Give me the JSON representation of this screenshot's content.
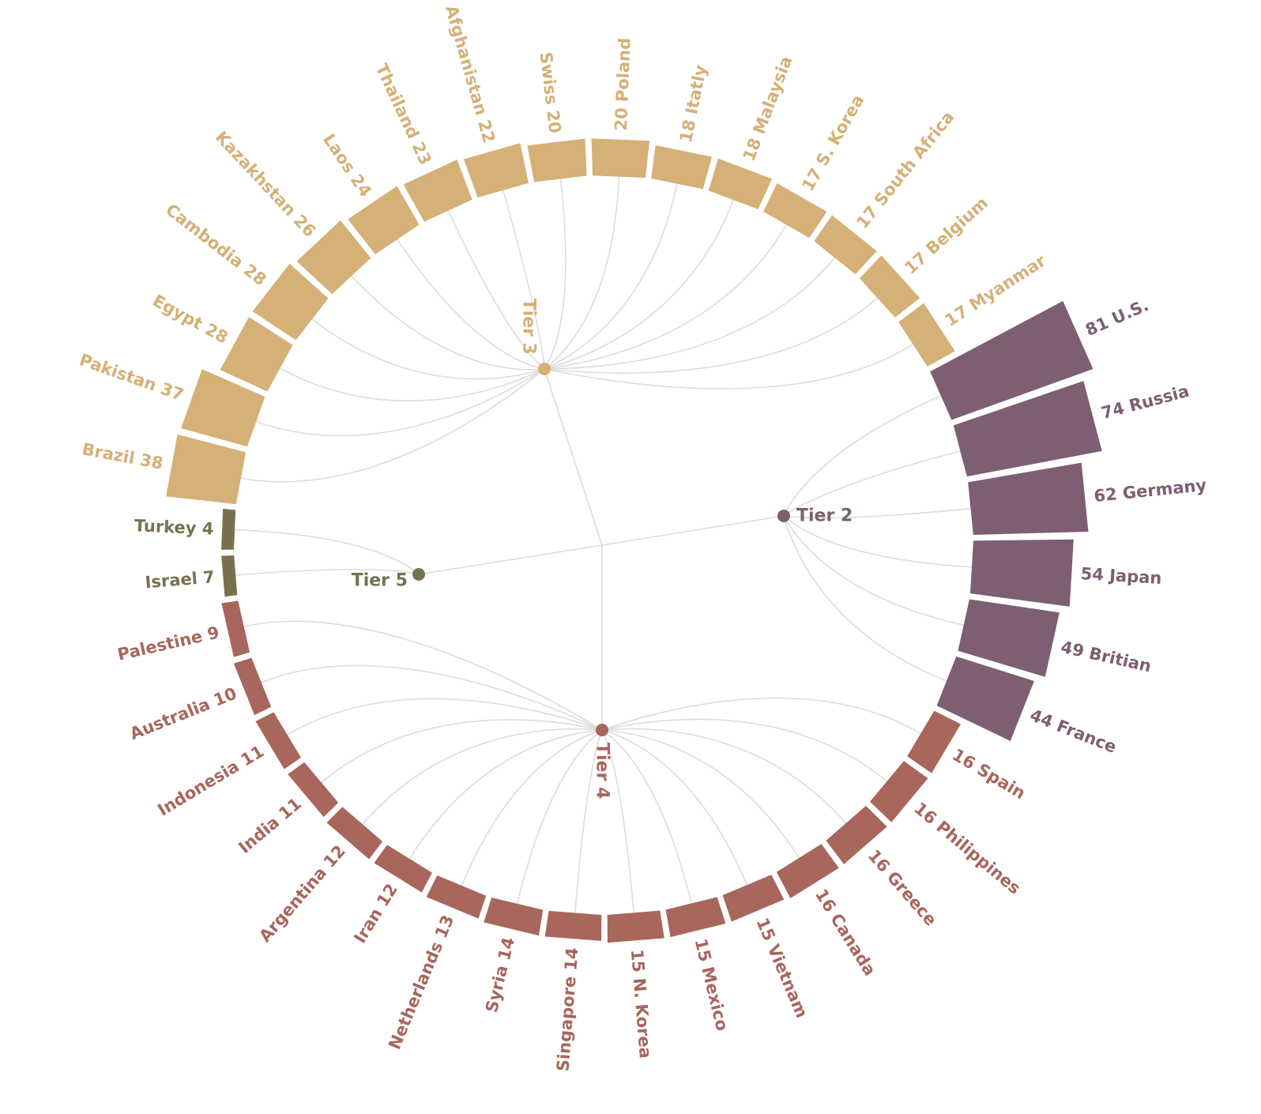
{
  "chart_data": {
    "type": "radial-bar",
    "title": "",
    "colors": {
      "Tier 2": "#7d5e72",
      "Tier 3": "#d5b077",
      "Tier 4": "#a8665c",
      "Tier 5": "#787150",
      "link": "#dcdcdc"
    },
    "tiers": [
      {
        "name": "Tier 2",
        "label": "Tier 2"
      },
      {
        "name": "Tier 3",
        "label": "Tier 3"
      },
      {
        "name": "Tier 4",
        "label": "Tier 4"
      },
      {
        "name": "Tier 5",
        "label": "Tier 5"
      }
    ],
    "items": [
      {
        "name": "U.S.",
        "value": 81,
        "tier": "Tier 2"
      },
      {
        "name": "Russia",
        "value": 74,
        "tier": "Tier 2"
      },
      {
        "name": "Germany",
        "value": 62,
        "tier": "Tier 2"
      },
      {
        "name": "Japan",
        "value": 54,
        "tier": "Tier 2"
      },
      {
        "name": "Britian",
        "value": 49,
        "tier": "Tier 2"
      },
      {
        "name": "France",
        "value": 44,
        "tier": "Tier 2"
      },
      {
        "name": "Spain",
        "value": 16,
        "tier": "Tier 4"
      },
      {
        "name": "Philippines",
        "value": 16,
        "tier": "Tier 4"
      },
      {
        "name": "Greece",
        "value": 16,
        "tier": "Tier 4"
      },
      {
        "name": "Canada",
        "value": 16,
        "tier": "Tier 4"
      },
      {
        "name": "Vietnam",
        "value": 15,
        "tier": "Tier 4"
      },
      {
        "name": "Mexico",
        "value": 15,
        "tier": "Tier 4"
      },
      {
        "name": "N. Korea",
        "value": 15,
        "tier": "Tier 4"
      },
      {
        "name": "Singapore",
        "value": 14,
        "tier": "Tier 4"
      },
      {
        "name": "Syria",
        "value": 14,
        "tier": "Tier 4"
      },
      {
        "name": "Netherlands",
        "value": 13,
        "tier": "Tier 4"
      },
      {
        "name": "Iran",
        "value": 12,
        "tier": "Tier 4"
      },
      {
        "name": "Argentina",
        "value": 12,
        "tier": "Tier 4"
      },
      {
        "name": "India",
        "value": 11,
        "tier": "Tier 4"
      },
      {
        "name": "Indonesia",
        "value": 11,
        "tier": "Tier 4"
      },
      {
        "name": "Australia",
        "value": 10,
        "tier": "Tier 4"
      },
      {
        "name": "Palestine",
        "value": 9,
        "tier": "Tier 4"
      },
      {
        "name": "Israel",
        "value": 7,
        "tier": "Tier 5"
      },
      {
        "name": "Turkey",
        "value": 4,
        "tier": "Tier 5"
      },
      {
        "name": "Brazil",
        "value": 38,
        "tier": "Tier 3"
      },
      {
        "name": "Pakistan",
        "value": 37,
        "tier": "Tier 3"
      },
      {
        "name": "Egypt",
        "value": 28,
        "tier": "Tier 3"
      },
      {
        "name": "Cambodia",
        "value": 28,
        "tier": "Tier 3"
      },
      {
        "name": "Kazakhstan",
        "value": 26,
        "tier": "Tier 3"
      },
      {
        "name": "Laos",
        "value": 24,
        "tier": "Tier 3"
      },
      {
        "name": "Thailand",
        "value": 23,
        "tier": "Tier 3"
      },
      {
        "name": "Afghanistan",
        "value": 22,
        "tier": "Tier 3"
      },
      {
        "name": "Swiss",
        "value": 20,
        "tier": "Tier 3"
      },
      {
        "name": "Poland",
        "value": 20,
        "tier": "Tier 3"
      },
      {
        "name": "Itatly",
        "value": 18,
        "tier": "Tier 3"
      },
      {
        "name": "Malaysia",
        "value": 18,
        "tier": "Tier 3"
      },
      {
        "name": "S. Korea",
        "value": 17,
        "tier": "Tier 3"
      },
      {
        "name": "South Africa",
        "value": 17,
        "tier": "Tier 3"
      },
      {
        "name": "Belgium",
        "value": 17,
        "tier": "Tier 3"
      },
      {
        "name": "Myanmar",
        "value": 17,
        "tier": "Tier 3"
      }
    ]
  }
}
